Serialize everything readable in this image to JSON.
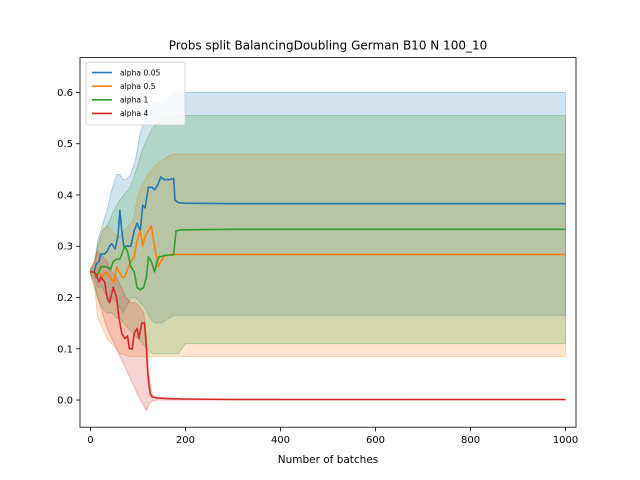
{
  "chart_data": {
    "type": "line",
    "title": "Probs split BalancingDoubling German B10 N 100_10",
    "xlabel": "Number of batches",
    "ylabel": "",
    "xlim": [
      -22,
      1022
    ],
    "ylim": [
      -0.053,
      0.668
    ],
    "xticks": [
      0,
      200,
      400,
      600,
      800,
      1000
    ],
    "yticks": [
      0.0,
      0.1,
      0.2,
      0.3,
      0.4,
      0.5,
      0.6
    ],
    "grid": false,
    "legend_position": "top-left",
    "series": [
      {
        "name": "alpha 0.05",
        "color": "#1f77b4",
        "points": [
          [
            0,
            0.25
          ],
          [
            8,
            0.25
          ],
          [
            12,
            0.265
          ],
          [
            18,
            0.27
          ],
          [
            22,
            0.285
          ],
          [
            30,
            0.285
          ],
          [
            35,
            0.29
          ],
          [
            40,
            0.3
          ],
          [
            45,
            0.305
          ],
          [
            52,
            0.295
          ],
          [
            58,
            0.32
          ],
          [
            62,
            0.37
          ],
          [
            66,
            0.33
          ],
          [
            70,
            0.3
          ],
          [
            75,
            0.3
          ],
          [
            80,
            0.3
          ],
          [
            85,
            0.3
          ],
          [
            92,
            0.33
          ],
          [
            98,
            0.345
          ],
          [
            105,
            0.33
          ],
          [
            110,
            0.38
          ],
          [
            115,
            0.375
          ],
          [
            122,
            0.415
          ],
          [
            130,
            0.415
          ],
          [
            135,
            0.41
          ],
          [
            142,
            0.42
          ],
          [
            148,
            0.435
          ],
          [
            155,
            0.43
          ],
          [
            165,
            0.43
          ],
          [
            175,
            0.432
          ],
          [
            178,
            0.39
          ],
          [
            185,
            0.385
          ],
          [
            200,
            0.384
          ],
          [
            300,
            0.383
          ],
          [
            1000,
            0.383
          ]
        ],
        "band": [
          [
            0,
            0.245,
            0.255
          ],
          [
            8,
            0.24,
            0.262
          ],
          [
            15,
            0.22,
            0.31
          ],
          [
            25,
            0.22,
            0.34
          ],
          [
            35,
            0.2,
            0.37
          ],
          [
            45,
            0.2,
            0.41
          ],
          [
            55,
            0.19,
            0.44
          ],
          [
            62,
            0.18,
            0.44
          ],
          [
            68,
            0.17,
            0.43
          ],
          [
            75,
            0.18,
            0.43
          ],
          [
            85,
            0.2,
            0.44
          ],
          [
            95,
            0.2,
            0.47
          ],
          [
            105,
            0.19,
            0.52
          ],
          [
            115,
            0.18,
            0.55
          ],
          [
            125,
            0.16,
            0.57
          ],
          [
            135,
            0.15,
            0.58
          ],
          [
            150,
            0.15,
            0.58
          ],
          [
            165,
            0.16,
            0.59
          ],
          [
            175,
            0.165,
            0.6
          ],
          [
            185,
            0.165,
            0.6
          ],
          [
            200,
            0.165,
            0.6
          ],
          [
            1000,
            0.165,
            0.6
          ]
        ]
      },
      {
        "name": "alpha 0.5",
        "color": "#ff7f0e",
        "points": [
          [
            0,
            0.25
          ],
          [
            8,
            0.25
          ],
          [
            12,
            0.24
          ],
          [
            18,
            0.25
          ],
          [
            25,
            0.24
          ],
          [
            32,
            0.25
          ],
          [
            40,
            0.24
          ],
          [
            50,
            0.23
          ],
          [
            55,
            0.26
          ],
          [
            60,
            0.25
          ],
          [
            66,
            0.24
          ],
          [
            72,
            0.24
          ],
          [
            78,
            0.255
          ],
          [
            85,
            0.27
          ],
          [
            92,
            0.28
          ],
          [
            98,
            0.31
          ],
          [
            105,
            0.33
          ],
          [
            110,
            0.3
          ],
          [
            115,
            0.32
          ],
          [
            122,
            0.33
          ],
          [
            128,
            0.34
          ],
          [
            133,
            0.31
          ],
          [
            138,
            0.285
          ],
          [
            143,
            0.26
          ],
          [
            148,
            0.27
          ],
          [
            155,
            0.28
          ],
          [
            165,
            0.283
          ],
          [
            175,
            0.284
          ],
          [
            200,
            0.284
          ],
          [
            1000,
            0.284
          ]
        ],
        "band": [
          [
            0,
            0.245,
            0.255
          ],
          [
            8,
            0.23,
            0.265
          ],
          [
            15,
            0.16,
            0.3
          ],
          [
            25,
            0.14,
            0.33
          ],
          [
            35,
            0.12,
            0.34
          ],
          [
            45,
            0.11,
            0.33
          ],
          [
            55,
            0.1,
            0.32
          ],
          [
            62,
            0.09,
            0.32
          ],
          [
            70,
            0.09,
            0.33
          ],
          [
            80,
            0.085,
            0.34
          ],
          [
            90,
            0.085,
            0.35
          ],
          [
            100,
            0.085,
            0.4
          ],
          [
            110,
            0.085,
            0.42
          ],
          [
            120,
            0.085,
            0.44
          ],
          [
            130,
            0.085,
            0.45
          ],
          [
            140,
            0.085,
            0.46
          ],
          [
            155,
            0.085,
            0.47
          ],
          [
            170,
            0.085,
            0.48
          ],
          [
            185,
            0.085,
            0.48
          ],
          [
            200,
            0.085,
            0.48
          ],
          [
            1000,
            0.085,
            0.48
          ]
        ]
      },
      {
        "name": "alpha 1",
        "color": "#2ca02c",
        "points": [
          [
            0,
            0.25
          ],
          [
            8,
            0.25
          ],
          [
            12,
            0.24
          ],
          [
            18,
            0.25
          ],
          [
            22,
            0.26
          ],
          [
            30,
            0.26
          ],
          [
            35,
            0.26
          ],
          [
            42,
            0.255
          ],
          [
            48,
            0.27
          ],
          [
            55,
            0.275
          ],
          [
            62,
            0.275
          ],
          [
            68,
            0.29
          ],
          [
            72,
            0.3
          ],
          [
            78,
            0.29
          ],
          [
            85,
            0.26
          ],
          [
            92,
            0.25
          ],
          [
            98,
            0.22
          ],
          [
            105,
            0.215
          ],
          [
            112,
            0.22
          ],
          [
            118,
            0.24
          ],
          [
            122,
            0.28
          ],
          [
            128,
            0.27
          ],
          [
            135,
            0.25
          ],
          [
            140,
            0.27
          ],
          [
            145,
            0.28
          ],
          [
            150,
            0.28
          ],
          [
            155,
            0.282
          ],
          [
            165,
            0.283
          ],
          [
            175,
            0.283
          ],
          [
            180,
            0.33
          ],
          [
            190,
            0.332
          ],
          [
            200,
            0.332
          ],
          [
            300,
            0.333
          ],
          [
            1000,
            0.333
          ]
        ],
        "band": [
          [
            0,
            0.245,
            0.255
          ],
          [
            8,
            0.22,
            0.27
          ],
          [
            15,
            0.2,
            0.3
          ],
          [
            25,
            0.18,
            0.33
          ],
          [
            35,
            0.17,
            0.34
          ],
          [
            45,
            0.17,
            0.36
          ],
          [
            55,
            0.16,
            0.38
          ],
          [
            62,
            0.16,
            0.39
          ],
          [
            70,
            0.15,
            0.4
          ],
          [
            80,
            0.14,
            0.41
          ],
          [
            90,
            0.13,
            0.43
          ],
          [
            100,
            0.12,
            0.46
          ],
          [
            110,
            0.11,
            0.49
          ],
          [
            120,
            0.1,
            0.51
          ],
          [
            130,
            0.09,
            0.53
          ],
          [
            140,
            0.09,
            0.54
          ],
          [
            155,
            0.09,
            0.55
          ],
          [
            170,
            0.09,
            0.555
          ],
          [
            185,
            0.09,
            0.555
          ],
          [
            200,
            0.11,
            0.555
          ],
          [
            1000,
            0.11,
            0.555
          ]
        ]
      },
      {
        "name": "alpha 4",
        "color": "#d62728",
        "points": [
          [
            0,
            0.25
          ],
          [
            8,
            0.25
          ],
          [
            12,
            0.245
          ],
          [
            18,
            0.23
          ],
          [
            22,
            0.24
          ],
          [
            30,
            0.23
          ],
          [
            35,
            0.2
          ],
          [
            40,
            0.19
          ],
          [
            48,
            0.22
          ],
          [
            55,
            0.2
          ],
          [
            60,
            0.16
          ],
          [
            66,
            0.13
          ],
          [
            72,
            0.12
          ],
          [
            78,
            0.125
          ],
          [
            82,
            0.1
          ],
          [
            88,
            0.1
          ],
          [
            92,
            0.13
          ],
          [
            98,
            0.14
          ],
          [
            102,
            0.12
          ],
          [
            108,
            0.15
          ],
          [
            114,
            0.15
          ],
          [
            118,
            0.1
          ],
          [
            120,
            0.06
          ],
          [
            123,
            0.03
          ],
          [
            126,
            0.012
          ],
          [
            130,
            0.006
          ],
          [
            140,
            0.004
          ],
          [
            160,
            0.003
          ],
          [
            200,
            0.002
          ],
          [
            300,
            0.001
          ],
          [
            1000,
            0.001
          ]
        ],
        "band": [
          [
            0,
            0.245,
            0.255
          ],
          [
            8,
            0.23,
            0.27
          ],
          [
            15,
            0.2,
            0.29
          ],
          [
            25,
            0.17,
            0.28
          ],
          [
            35,
            0.14,
            0.27
          ],
          [
            45,
            0.12,
            0.25
          ],
          [
            55,
            0.1,
            0.24
          ],
          [
            65,
            0.08,
            0.22
          ],
          [
            75,
            0.06,
            0.2
          ],
          [
            85,
            0.04,
            0.19
          ],
          [
            95,
            0.02,
            0.19
          ],
          [
            105,
            0.0,
            0.18
          ],
          [
            112,
            -0.01,
            0.17
          ],
          [
            118,
            -0.02,
            0.12
          ],
          [
            122,
            -0.01,
            0.06
          ],
          [
            126,
            -0.005,
            0.03
          ],
          [
            130,
            -0.002,
            0.01
          ],
          [
            140,
            0.0,
            0.006
          ],
          [
            160,
            0.0,
            0.004
          ],
          [
            200,
            0.0,
            0.002
          ],
          [
            1000,
            0.0,
            0.001
          ]
        ]
      }
    ]
  }
}
